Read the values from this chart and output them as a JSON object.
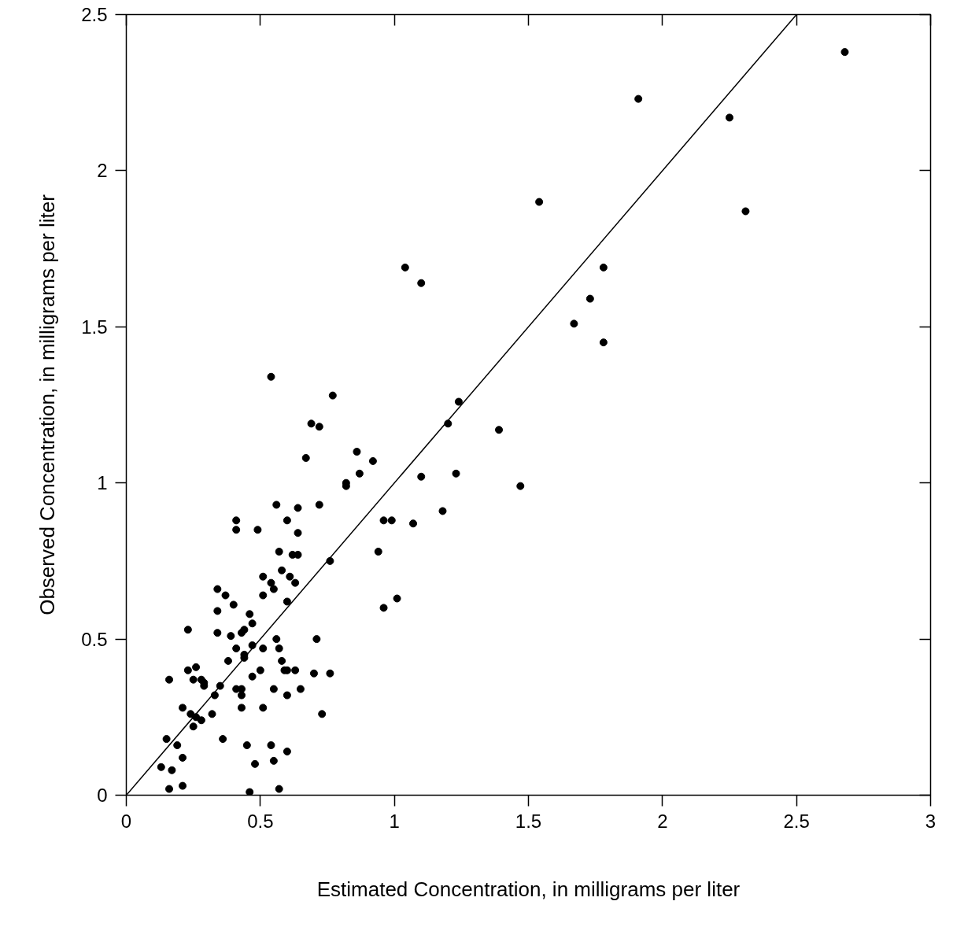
{
  "chart_data": {
    "type": "scatter",
    "xlabel": "Estimated Concentration, in milligrams per liter",
    "ylabel": "Observed Concentration, in milligrams per liter",
    "xlim": [
      0,
      3
    ],
    "ylim": [
      0,
      2.5
    ],
    "xticks": [
      0,
      0.5,
      1,
      1.5,
      2,
      2.5,
      3
    ],
    "yticks": [
      0,
      0.5,
      1,
      1.5,
      2,
      2.5
    ],
    "grid": false,
    "series": [
      {
        "color": "#000000",
        "marker": "circle",
        "x": [
          2.68,
          1.91,
          2.25,
          2.31,
          1.54,
          1.04,
          1.1,
          1.78,
          1.73,
          1.67,
          1.78,
          0.54,
          0.77,
          0.69,
          0.72,
          0.67,
          0.86,
          0.92,
          0.87,
          0.82,
          0.82,
          1.24,
          1.2,
          1.39,
          1.1,
          1.23,
          1.47,
          1.18,
          0.96,
          0.99,
          1.07,
          0.94,
          1.01,
          0.96,
          0.56,
          0.64,
          0.72,
          0.41,
          0.6,
          0.41,
          0.49,
          0.64,
          0.57,
          0.62,
          0.64,
          0.76,
          0.58,
          0.51,
          0.54,
          0.61,
          0.63,
          0.55,
          0.34,
          0.37,
          0.51,
          0.6,
          0.4,
          0.34,
          0.46,
          0.47,
          0.23,
          0.34,
          0.39,
          0.43,
          0.44,
          0.56,
          0.71,
          0.47,
          0.51,
          0.57,
          0.41,
          0.44,
          0.44,
          0.38,
          0.58,
          0.23,
          0.26,
          0.5,
          0.59,
          0.6,
          0.63,
          0.7,
          0.76,
          0.16,
          0.25,
          0.28,
          0.29,
          0.29,
          0.35,
          0.47,
          0.33,
          0.41,
          0.43,
          0.43,
          0.55,
          0.6,
          0.65,
          0.21,
          0.24,
          0.26,
          0.28,
          0.32,
          0.25,
          0.43,
          0.51,
          0.73,
          0.15,
          0.36,
          0.19,
          0.45,
          0.54,
          0.6,
          0.21,
          0.48,
          0.55,
          0.13,
          0.17,
          0.16,
          0.21,
          0.46,
          0.57
        ],
        "values": [
          2.38,
          2.23,
          2.17,
          1.87,
          1.9,
          1.69,
          1.64,
          1.69,
          1.59,
          1.51,
          1.45,
          1.34,
          1.28,
          1.19,
          1.18,
          1.08,
          1.1,
          1.07,
          1.03,
          1.0,
          0.99,
          1.26,
          1.19,
          1.17,
          1.02,
          1.03,
          0.99,
          0.91,
          0.88,
          0.88,
          0.87,
          0.78,
          0.63,
          0.6,
          0.93,
          0.92,
          0.93,
          0.88,
          0.88,
          0.85,
          0.85,
          0.84,
          0.78,
          0.77,
          0.77,
          0.75,
          0.72,
          0.7,
          0.68,
          0.7,
          0.68,
          0.66,
          0.66,
          0.64,
          0.64,
          0.62,
          0.61,
          0.59,
          0.58,
          0.55,
          0.53,
          0.52,
          0.51,
          0.52,
          0.53,
          0.5,
          0.5,
          0.48,
          0.47,
          0.47,
          0.47,
          0.45,
          0.44,
          0.43,
          0.43,
          0.4,
          0.41,
          0.4,
          0.4,
          0.4,
          0.4,
          0.39,
          0.39,
          0.37,
          0.37,
          0.37,
          0.36,
          0.35,
          0.35,
          0.38,
          0.32,
          0.34,
          0.34,
          0.32,
          0.34,
          0.32,
          0.34,
          0.28,
          0.26,
          0.25,
          0.24,
          0.26,
          0.22,
          0.28,
          0.28,
          0.26,
          0.18,
          0.18,
          0.16,
          0.16,
          0.16,
          0.14,
          0.12,
          0.1,
          0.11,
          0.09,
          0.08,
          0.02,
          0.03,
          0.01,
          0.02
        ]
      },
      {
        "type": "line",
        "color": "#000000",
        "x": [
          0,
          2.5
        ],
        "values": [
          0,
          2.5
        ]
      }
    ]
  }
}
